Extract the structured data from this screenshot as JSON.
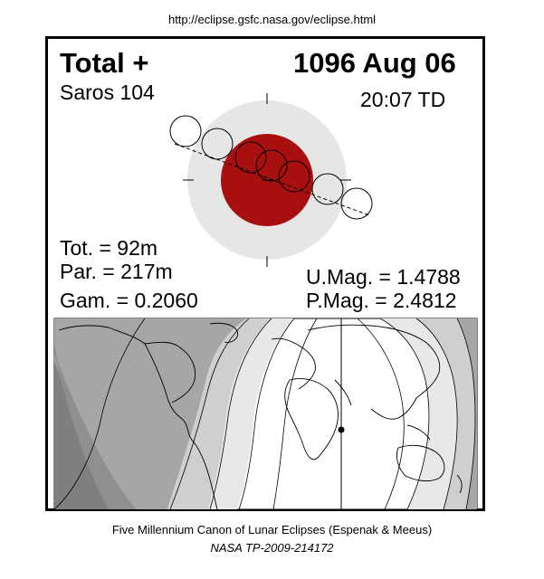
{
  "header": {
    "url": "http://eclipse.gsfc.nasa.gov/eclipse.html"
  },
  "eclipse": {
    "type_label": "Total  +",
    "date": "1096 Aug 06",
    "saros": "Saros 104",
    "time": "20:07 TD",
    "tot": "Tot. =  92m",
    "par": "Par. = 217m",
    "gam": "Gam. = 0.2060",
    "umag": "U.Mag. = 1.4788",
    "pmag": "P.Mag. = 2.4812"
  },
  "colors": {
    "umbra": "#a8100f",
    "penumbra": "#e6e6e6",
    "map_dark": "#7f7f7f",
    "map_mid": "#a6a6a6",
    "map_light": "#cfcfcf",
    "map_lighter": "#e8e8e8",
    "map_day": "#ffffff"
  },
  "footer": {
    "line1": "Five Millennium Canon of Lunar Eclipses (Espenak & Meeus)",
    "line2": "NASA TP-2009-214172"
  }
}
